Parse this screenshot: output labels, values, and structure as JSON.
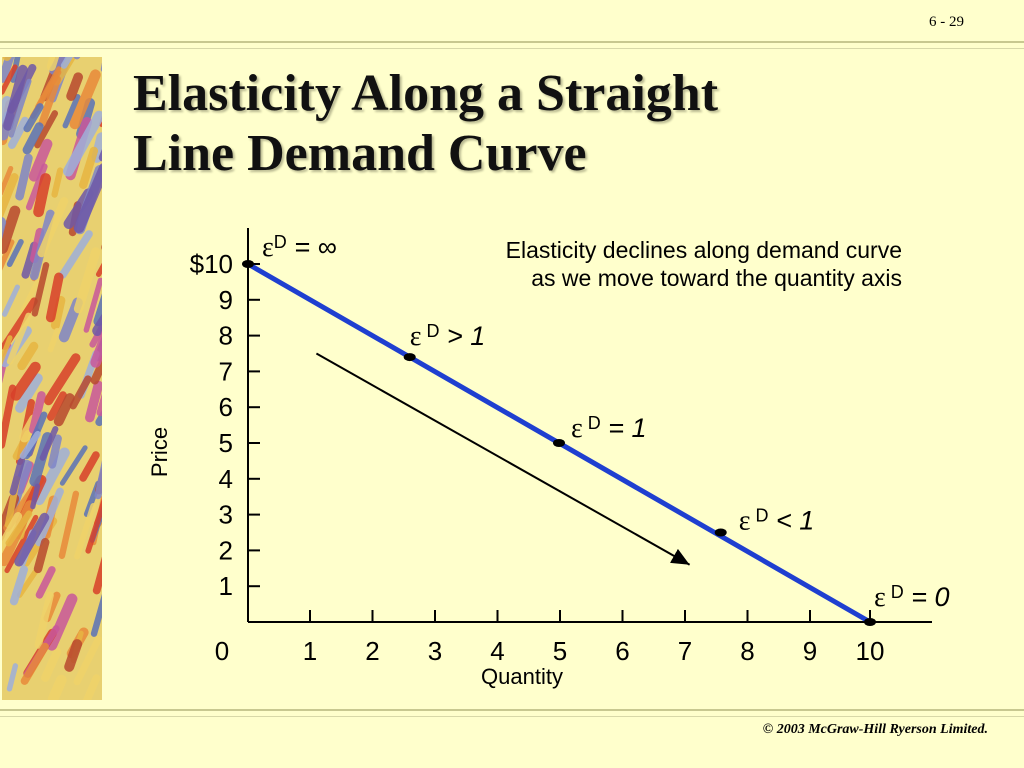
{
  "slide": {
    "number": "6 - 29",
    "title_line1": "Elasticity Along a Straight",
    "title_line2": "Line Demand Curve",
    "copyright": "© 2003 McGraw-Hill Ryerson Limited.",
    "note": "Elasticity declines along demand curve as we move toward the quantity axis"
  },
  "colors": {
    "background": "#ffffcc",
    "demand_line": "#1f3fd0",
    "axis": "#000000"
  },
  "chart_data": {
    "type": "line",
    "xlabel": "Quantity",
    "ylabel": "Price",
    "xlim": [
      0,
      10
    ],
    "ylim": [
      0,
      10
    ],
    "x_ticks": [
      "0",
      "1",
      "2",
      "3",
      "4",
      "5",
      "6",
      "7",
      "8",
      "9",
      "10"
    ],
    "y_ticks": [
      "$10",
      "9",
      "8",
      "7",
      "6",
      "5",
      "4",
      "3",
      "2",
      "1"
    ],
    "y_tick_values": [
      10,
      9,
      8,
      7,
      6,
      5,
      4,
      3,
      2,
      1
    ],
    "series": [
      {
        "points": [
          [
            0,
            10
          ],
          [
            10,
            0
          ]
        ]
      }
    ],
    "points": [
      {
        "x": 0,
        "y": 10,
        "label_eps": "ε",
        "label_sup": "D",
        "label_rel": " = ∞"
      },
      {
        "x": 2.6,
        "y": 7.4,
        "label_eps": "ε",
        "label_sup": " D",
        "label_rel": " > 1"
      },
      {
        "x": 5,
        "y": 5,
        "label_eps": "ε",
        "label_sup": " D",
        "label_rel": " = 1"
      },
      {
        "x": 7.6,
        "y": 2.5,
        "label_eps": "ε",
        "label_sup": " D",
        "label_rel": " < 1"
      },
      {
        "x": 10,
        "y": 0,
        "label_eps": "ε",
        "label_sup": " D",
        "label_rel": " = 0"
      }
    ],
    "arrow": {
      "from": [
        1.1,
        7.5
      ],
      "to": [
        7.1,
        1.6
      ]
    }
  }
}
